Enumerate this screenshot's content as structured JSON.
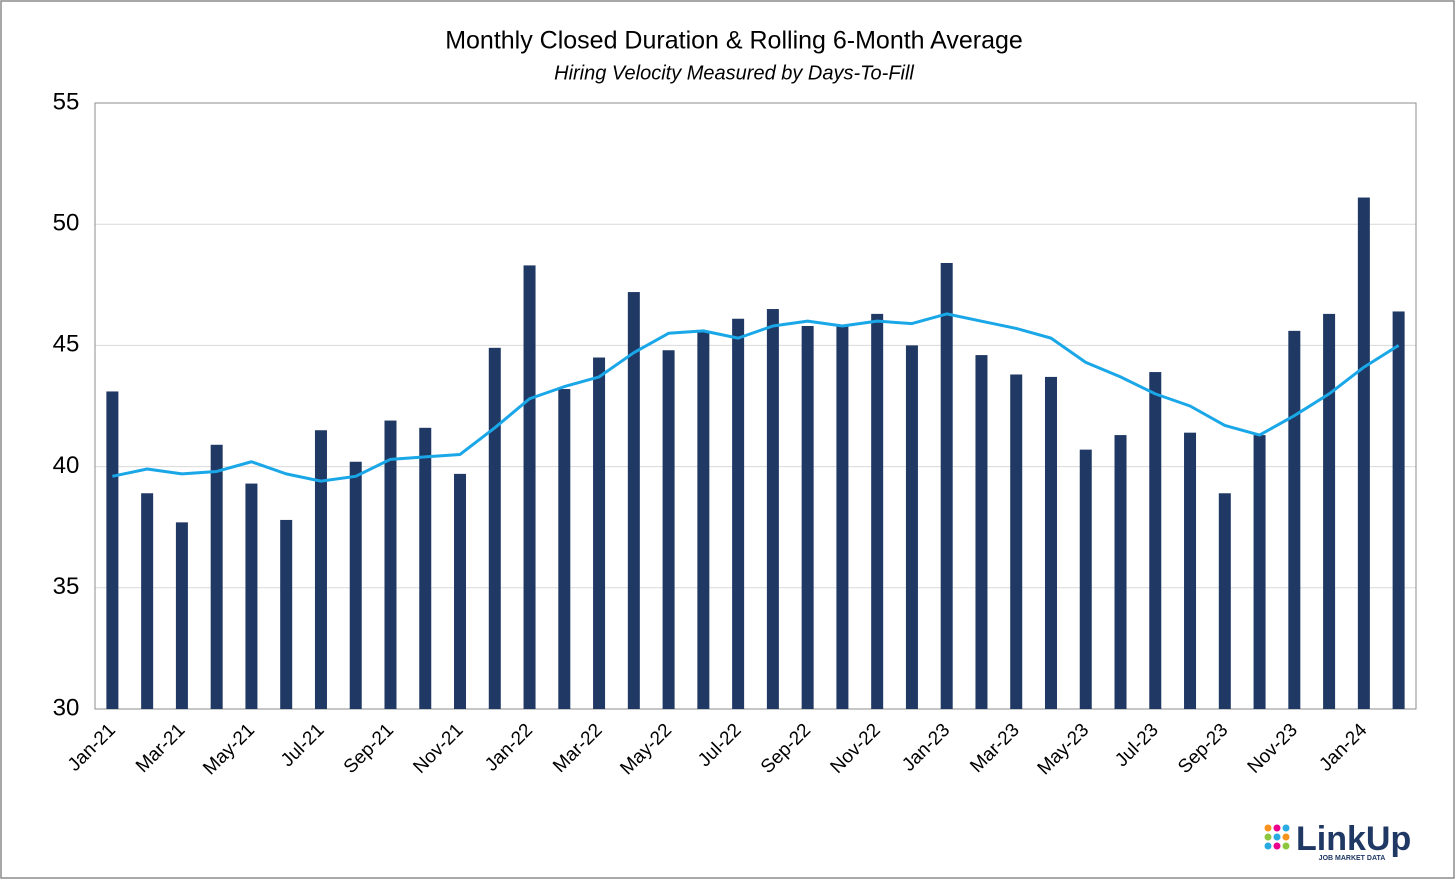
{
  "chart_data": {
    "type": "bar-line",
    "title": "Monthly Closed Duration & Rolling 6-Month Average",
    "subtitle": "Hiring Velocity Measured by Days-To-Fill",
    "categories": [
      "Jan-21",
      null,
      "Mar-21",
      null,
      "May-21",
      null,
      "Jul-21",
      null,
      "Sep-21",
      null,
      "Nov-21",
      null,
      "Jan-22",
      null,
      "Mar-22",
      null,
      "May-22",
      null,
      "Jul-22",
      null,
      "Sep-22",
      null,
      "Nov-22",
      null,
      "Jan-23",
      null,
      "Mar-23",
      null,
      "May-23",
      null,
      "Jul-23",
      null,
      "Sep-23",
      null,
      "Nov-23",
      null,
      "Jan-24",
      null
    ],
    "series": [
      {
        "type": "bar",
        "color": "#1f3864",
        "values": [
          43.1,
          38.9,
          37.7,
          40.9,
          39.3,
          37.8,
          41.5,
          40.2,
          41.9,
          41.6,
          39.7,
          44.9,
          48.3,
          43.2,
          44.5,
          47.2,
          44.8,
          45.6,
          46.1,
          46.5,
          45.8,
          45.8,
          46.3,
          45.0,
          48.4,
          44.6,
          43.8,
          43.7,
          40.7,
          41.3,
          43.9,
          41.4,
          38.9,
          41.3,
          45.6,
          46.3,
          51.1,
          46.4
        ]
      },
      {
        "type": "line",
        "color": "#1aa7e8",
        "values": [
          39.6,
          39.9,
          39.7,
          39.8,
          40.2,
          39.7,
          39.4,
          39.6,
          40.3,
          40.4,
          40.5,
          41.6,
          42.8,
          43.3,
          43.7,
          44.7,
          45.5,
          45.6,
          45.3,
          45.8,
          46.0,
          45.8,
          46.0,
          45.9,
          46.3,
          46.0,
          45.7,
          45.3,
          44.3,
          43.7,
          43.0,
          42.5,
          41.7,
          41.3,
          42.1,
          43.0,
          44.1,
          45.0
        ]
      }
    ],
    "ylim": [
      30,
      55
    ],
    "yticks": [
      30,
      35,
      40,
      45,
      50,
      55
    ],
    "grid": true
  },
  "logo": {
    "name": "LinkUp",
    "tagline": "JOB MARKET DATA"
  }
}
